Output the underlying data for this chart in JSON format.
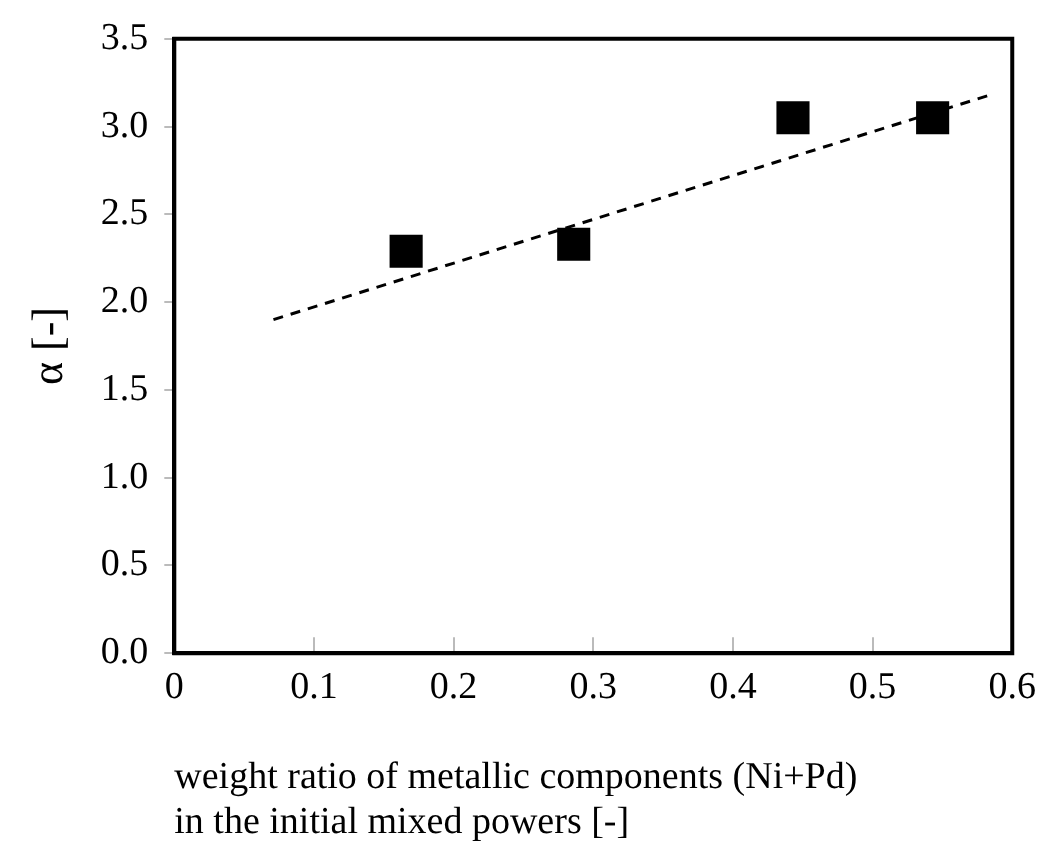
{
  "chart_data": {
    "type": "scatter",
    "xlabel": "weight ratio of metallic components (Ni+Pd)\nin the initial mixed powers [-]",
    "ylabel": "α [-]",
    "series": [
      {
        "type": "scatter",
        "color": "#000000",
        "marker": "square",
        "x": [
          0.166,
          0.286,
          0.443,
          0.543
        ],
        "values": [
          2.29,
          2.33,
          3.05,
          3.05
        ]
      },
      {
        "type": "line",
        "color": "#000000",
        "marker": "none",
        "line_style": "dashed",
        "x": [
          0.071,
          0.584
        ],
        "values": [
          1.9,
          3.18
        ]
      }
    ],
    "xlim": [
      0,
      0.6
    ],
    "xticks": [
      0,
      0.1,
      0.2,
      0.3,
      0.4,
      0.5,
      0.6
    ],
    "ylim": [
      0,
      3.5
    ],
    "yticks": [
      {
        "value": 0,
        "label": "0.0"
      },
      {
        "value": 0.5,
        "label": "0.5"
      },
      {
        "value": 1,
        "label": "1.0"
      },
      {
        "value": 1.5,
        "label": "1.5"
      },
      {
        "value": 2,
        "label": "2.0"
      },
      {
        "value": 2.5,
        "label": "2.5"
      },
      {
        "value": 3,
        "label": "3.0"
      },
      {
        "value": 3.5,
        "label": "3.5"
      }
    ],
    "grid": false,
    "legend": false
  }
}
